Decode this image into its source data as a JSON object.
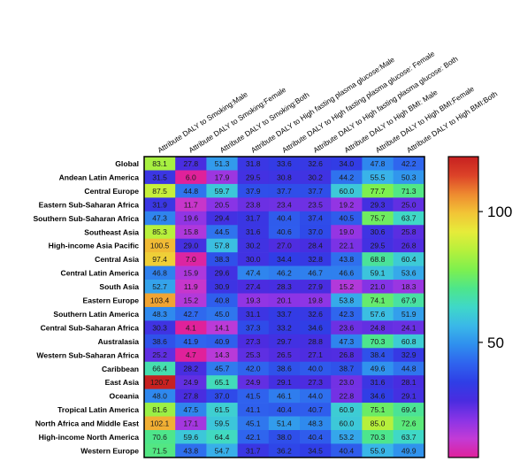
{
  "chart_data": {
    "type": "heatmap",
    "columns": [
      "Attribute DALY to Smoking:Male",
      "Attribute DALY to Smoking:Female",
      "Attribute DALY to Smoking:Both",
      "Attribute DALY to High fasting plasma glucose:Male",
      "Attribute DALY to High fasting plasma glucose: Female",
      "Attribute DALY to High fasting plasma glucose: Both",
      "Attribute DALY to High BMI: Male",
      "Attribute DALY to High BMI:Female",
      "Attribute DALY to High BMI:Both"
    ],
    "rows": [
      "Global",
      "Andean Latin America",
      "Central Europe",
      "Eastern Sub-Saharan Africa",
      "Southern Sub-Saharan Africa",
      "Southeast Asia",
      "High-income Asia Pacific",
      "Central Asia",
      "Central Latin America",
      "South Asia",
      "Eastern Europe",
      "Southern Latin America",
      "Central Sub-Saharan Africa",
      "Australasia",
      "Western Sub-Saharan Africa",
      "Caribbean",
      "East Asia",
      "Oceania",
      "Tropical Latin America",
      "North Africa and Middle East",
      "High-income North America",
      "Western Europe"
    ],
    "values": [
      [
        83.1,
        27.8,
        51.3,
        31.8,
        33.6,
        32.6,
        34.0,
        47.8,
        42.2
      ],
      [
        31.5,
        6.0,
        17.9,
        29.5,
        30.8,
        30.2,
        44.2,
        55.5,
        50.3
      ],
      [
        87.5,
        44.8,
        59.7,
        37.9,
        37.7,
        37.7,
        60.0,
        77.7,
        71.3
      ],
      [
        31.9,
        11.7,
        20.5,
        23.8,
        23.4,
        23.5,
        19.2,
        29.3,
        25.0
      ],
      [
        47.3,
        19.6,
        29.4,
        31.7,
        40.4,
        37.4,
        40.5,
        75.7,
        63.7
      ],
      [
        85.3,
        15.8,
        44.5,
        31.6,
        40.6,
        37.0,
        19.0,
        30.6,
        25.8
      ],
      [
        100.5,
        29.0,
        57.8,
        30.2,
        27.0,
        28.4,
        22.1,
        29.5,
        26.8
      ],
      [
        97.4,
        7.0,
        38.3,
        30.0,
        34.4,
        32.8,
        43.8,
        68.8,
        60.4
      ],
      [
        46.8,
        15.9,
        29.6,
        47.4,
        46.2,
        46.7,
        46.6,
        59.1,
        53.6
      ],
      [
        52.7,
        11.9,
        30.9,
        27.4,
        28.3,
        27.9,
        15.2,
        21.0,
        18.3
      ],
      [
        103.4,
        15.2,
        40.8,
        19.3,
        20.1,
        19.8,
        53.8,
        74.1,
        67.9
      ],
      [
        48.3,
        42.7,
        45.0,
        31.1,
        33.7,
        32.6,
        42.3,
        57.6,
        51.9
      ],
      [
        30.3,
        4.1,
        14.1,
        37.3,
        33.2,
        34.6,
        23.6,
        24.8,
        24.1
      ],
      [
        38.6,
        41.9,
        40.9,
        27.3,
        29.7,
        28.8,
        47.3,
        70.3,
        60.8
      ],
      [
        25.2,
        4.7,
        14.3,
        25.3,
        26.5,
        27.1,
        26.8,
        38.4,
        32.9
      ],
      [
        66.4,
        28.2,
        45.7,
        42.0,
        38.6,
        40.0,
        38.7,
        49.6,
        44.8
      ],
      [
        120.7,
        24.9,
        65.1,
        24.9,
        29.1,
        27.3,
        23.0,
        31.6,
        28.1
      ],
      [
        48.0,
        27.8,
        37.0,
        41.5,
        46.1,
        44.0,
        22.8,
        34.6,
        29.1
      ],
      [
        81.6,
        47.5,
        61.5,
        41.1,
        40.4,
        40.7,
        60.9,
        75.1,
        69.4
      ],
      [
        102.1,
        17.1,
        59.5,
        45.1,
        51.4,
        48.3,
        60.0,
        85.0,
        72.6
      ],
      [
        70.6,
        59.6,
        64.4,
        42.1,
        38.0,
        40.4,
        53.2,
        70.3,
        63.7
      ],
      [
        71.5,
        43.8,
        54.7,
        31.7,
        36.2,
        34.5,
        40.4,
        55.9,
        49.9
      ]
    ],
    "colorbar": {
      "ticks": [
        100,
        50
      ],
      "range": [
        6,
        121
      ],
      "stops": [
        "#e0219a",
        "#c23bd6",
        "#8a34e6",
        "#4a2ce0",
        "#2f3ee6",
        "#2f64ee",
        "#2f8fee",
        "#3ab8e8",
        "#3fd8c8",
        "#4ee68a",
        "#7ef04e",
        "#b6f03c",
        "#e6ec3a",
        "#f2c436",
        "#ee8a30",
        "#dc4228",
        "#c62020"
      ]
    },
    "title": "",
    "xlabel": "",
    "ylabel": ""
  }
}
